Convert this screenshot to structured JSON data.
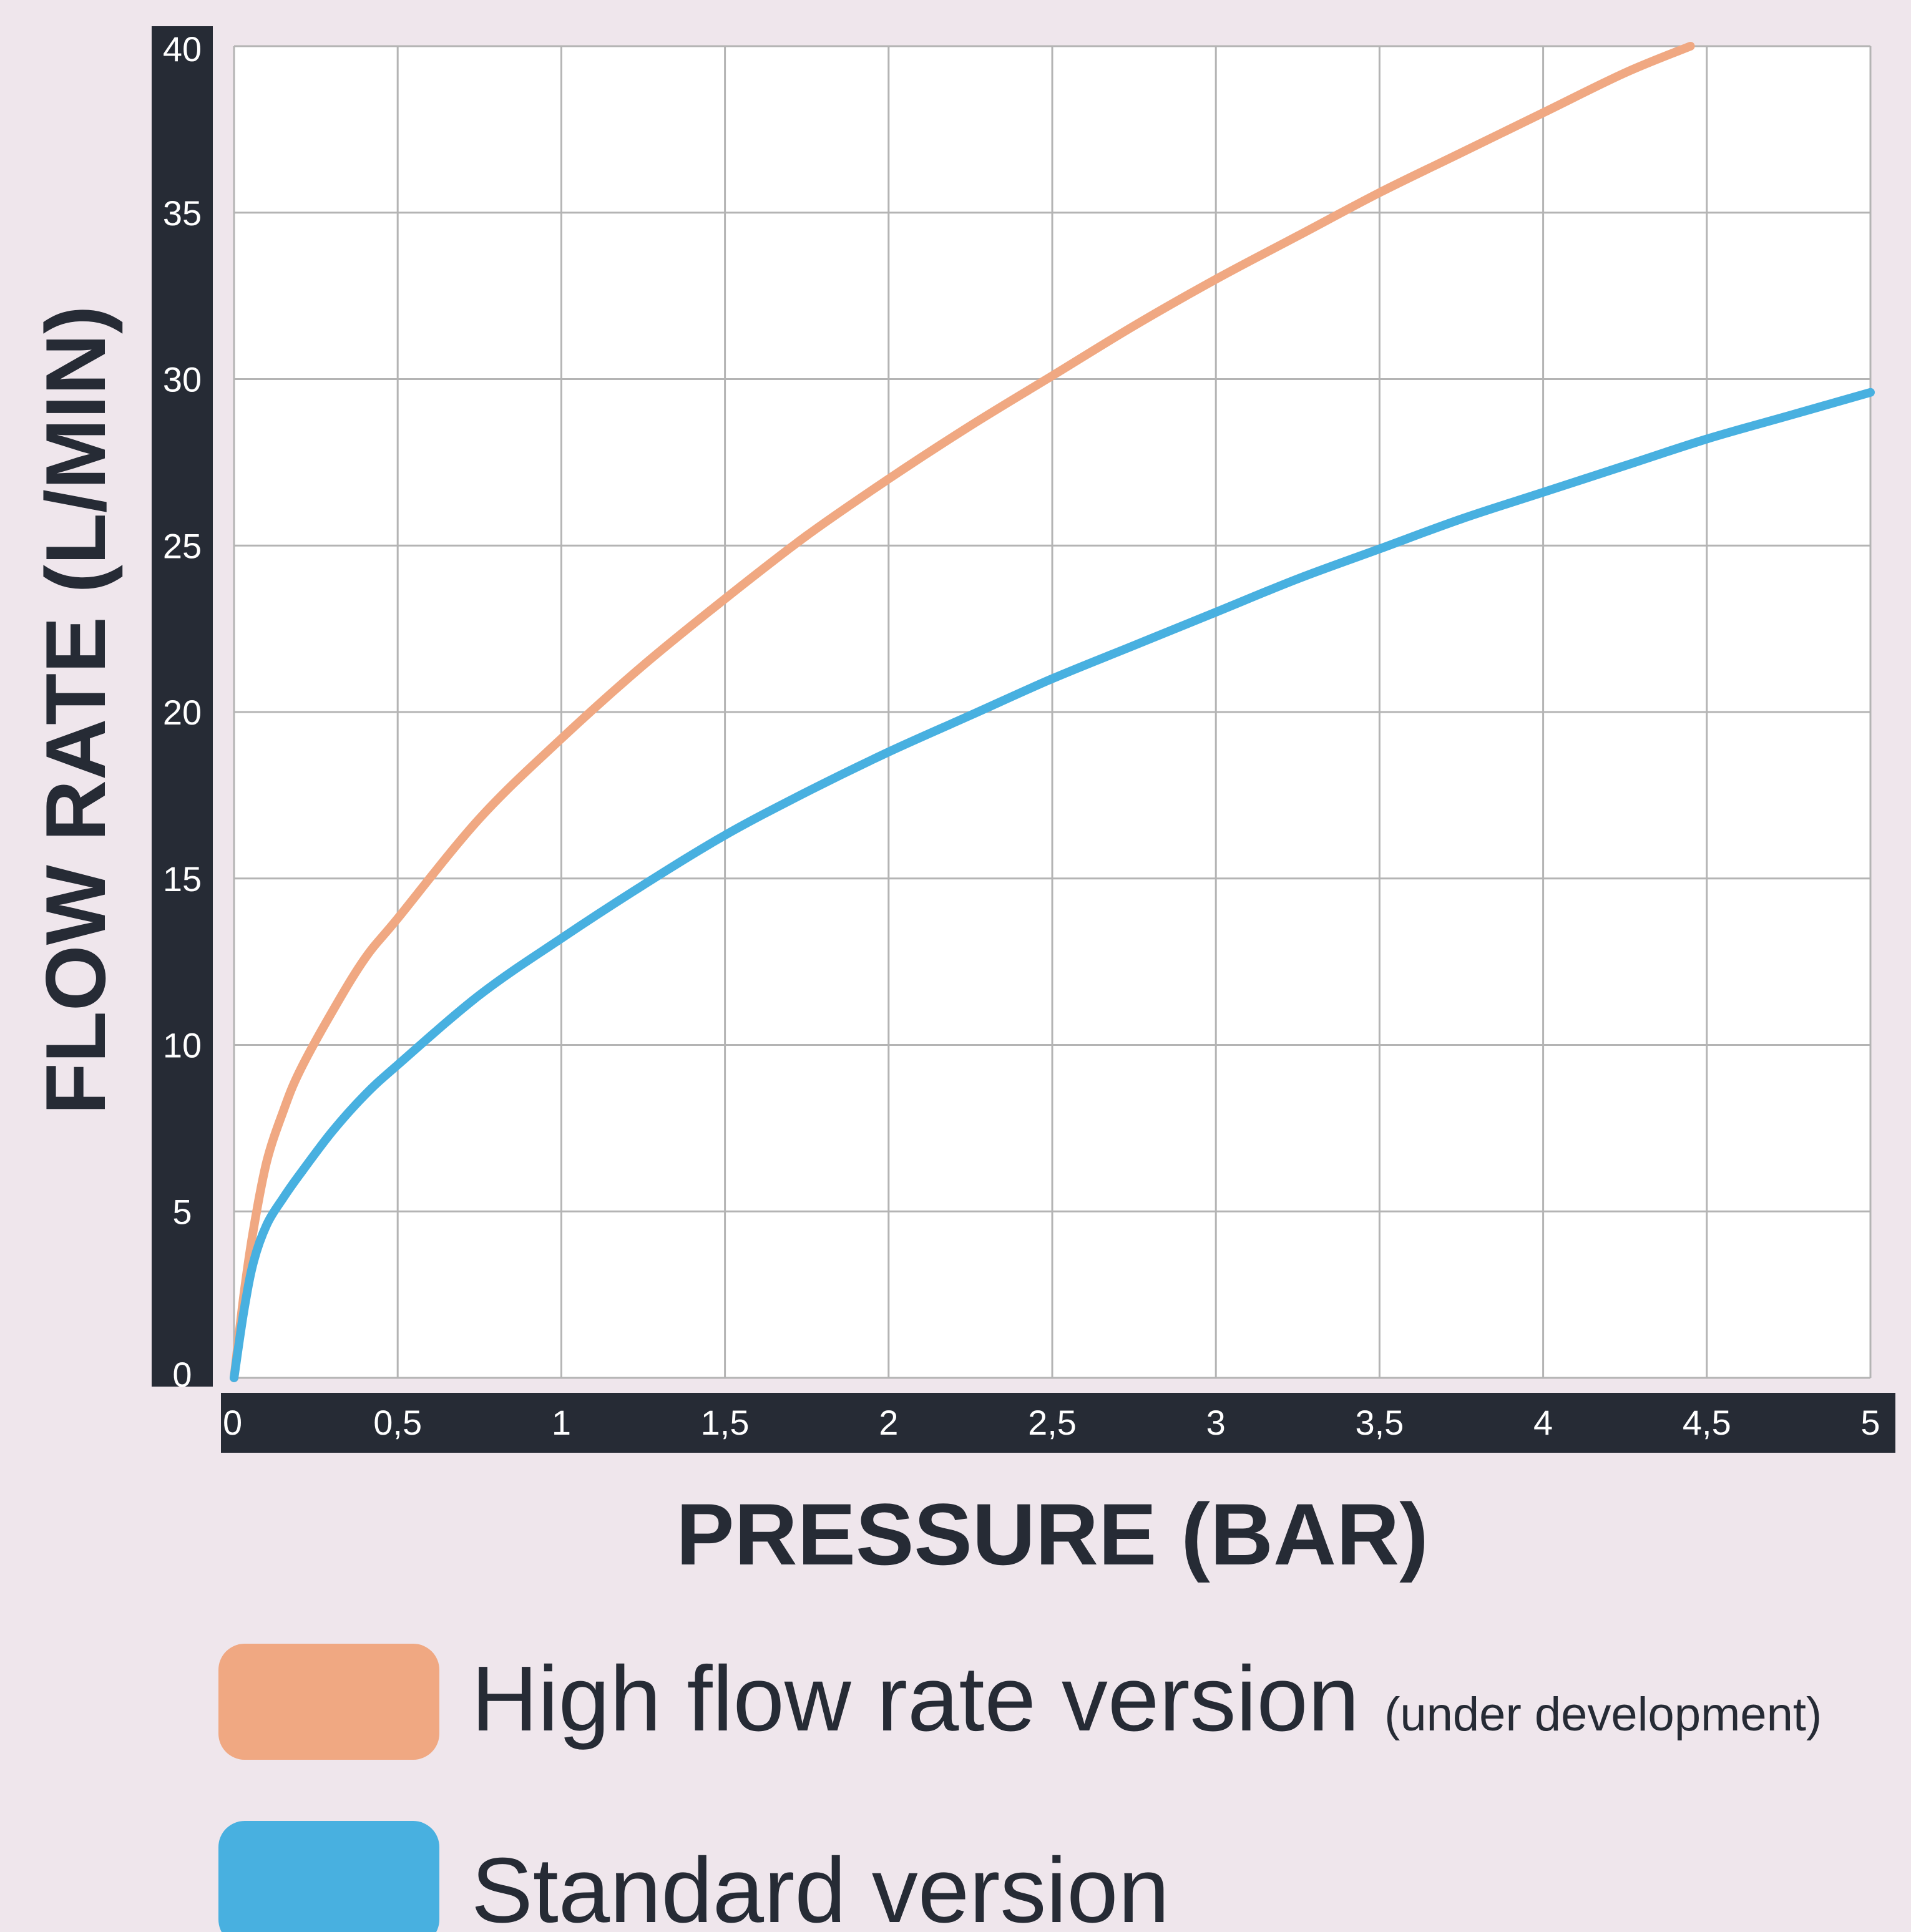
{
  "chart_data": {
    "type": "line",
    "xlabel": "PRESSURE (BAR)",
    "ylabel": "FLOW RATE (L/MIN)",
    "xlim": [
      0,
      5
    ],
    "ylim": [
      0,
      40
    ],
    "grid": true,
    "legend_position": "bottom",
    "x_ticks": [
      "0",
      "0,5",
      "1",
      "1,5",
      "2",
      "2,5",
      "3",
      "3,5",
      "4",
      "4,5",
      "5"
    ],
    "x_tick_values": [
      0,
      0.5,
      1,
      1.5,
      2,
      2.5,
      3,
      3.5,
      4,
      4.5,
      5
    ],
    "y_ticks": [
      "0",
      "5",
      "10",
      "15",
      "20",
      "25",
      "30",
      "35",
      "40"
    ],
    "y_tick_values": [
      0,
      5,
      10,
      15,
      20,
      25,
      30,
      35,
      40
    ],
    "series": [
      {
        "name": "High flow rate version",
        "note": "(under development)",
        "color": "#f0a882",
        "x": [
          0,
          0.03,
          0.06,
          0.1,
          0.15,
          0.2,
          0.3,
          0.4,
          0.5,
          0.75,
          1,
          1.25,
          1.5,
          1.75,
          2,
          2.25,
          2.5,
          2.75,
          3,
          3.25,
          3.5,
          3.75,
          4,
          4.25,
          4.45
        ],
        "y": [
          0,
          2.5,
          4.5,
          6.5,
          8.0,
          9.2,
          11.0,
          12.6,
          13.8,
          16.8,
          19.2,
          21.4,
          23.4,
          25.3,
          27.0,
          28.6,
          30.1,
          31.6,
          33.0,
          34.3,
          35.6,
          36.8,
          38.0,
          39.2,
          40.0
        ]
      },
      {
        "name": "Standard version",
        "note": "",
        "color": "#48b0e0",
        "x": [
          0,
          0.03,
          0.06,
          0.1,
          0.15,
          0.2,
          0.3,
          0.4,
          0.5,
          0.75,
          1,
          1.25,
          1.5,
          1.75,
          2,
          2.25,
          2.5,
          2.75,
          3,
          3.25,
          3.5,
          3.75,
          4,
          4.25,
          4.5,
          4.75,
          5
        ],
        "y": [
          0,
          2.0,
          3.5,
          4.6,
          5.4,
          6.1,
          7.4,
          8.5,
          9.4,
          11.5,
          13.2,
          14.8,
          16.3,
          17.6,
          18.8,
          19.9,
          21.0,
          22.0,
          23.0,
          24.0,
          24.9,
          25.8,
          26.6,
          27.4,
          28.2,
          28.9,
          29.6
        ]
      }
    ]
  },
  "legend": {
    "high_label": "High flow rate version",
    "high_note": "(under development)",
    "standard_label": "Standard version"
  },
  "colors": {
    "axis_band": "#262b35",
    "grid": "#b4b4b4",
    "plot_bg": "#ffffff",
    "page_bg": "#efe6ec"
  }
}
